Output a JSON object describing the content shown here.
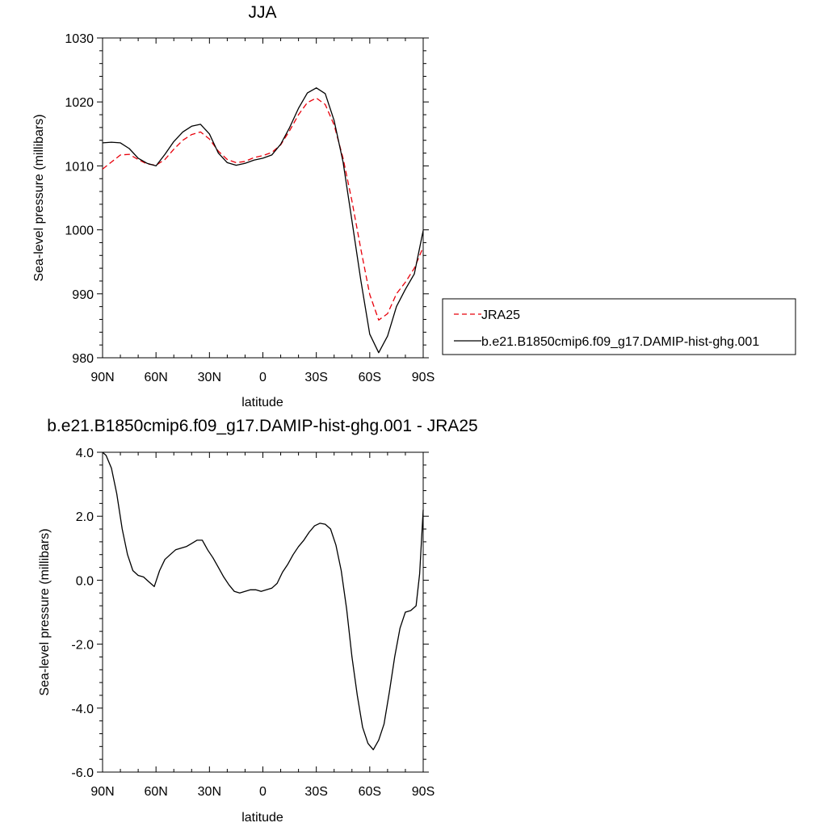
{
  "chart_data": [
    {
      "type": "line",
      "title": "JJA",
      "xlabel": "latitude",
      "ylabel": "Sea-level pressure (millibars)",
      "xlim": [
        "90N",
        "90S"
      ],
      "ylim": [
        980,
        1030
      ],
      "x_ticks": [
        "90N",
        "60N",
        "30N",
        "0",
        "30S",
        "60S",
        "90S"
      ],
      "y_ticks": [
        "980",
        "990",
        "1000",
        "1010",
        "1020",
        "1030"
      ],
      "x_values": [
        90,
        85,
        80,
        75,
        70,
        65,
        60,
        55,
        50,
        45,
        40,
        35,
        30,
        25,
        20,
        15,
        10,
        5,
        0,
        -5,
        -10,
        -15,
        -20,
        -25,
        -30,
        -35,
        -40,
        -45,
        -50,
        -55,
        -60,
        -65,
        -70,
        -75,
        -80,
        -85,
        -90
      ],
      "grid": false,
      "legend_position": "right",
      "legend": [
        "JRA25",
        "b.e21.B1850cmip6.f09_g17.DAMIP-hist-ghg.001"
      ],
      "series": [
        {
          "name": "JRA25",
          "color": "#e8000b",
          "style": "dashed",
          "values": [
            1009.5,
            1010.6,
            1011.7,
            1011.8,
            1011.0,
            1010.3,
            1010.1,
            1011.0,
            1012.6,
            1014.0,
            1014.9,
            1015.3,
            1014.2,
            1012.3,
            1011.0,
            1010.5,
            1010.7,
            1011.3,
            1011.6,
            1012.1,
            1013.3,
            1015.5,
            1018.0,
            1019.9,
            1020.6,
            1019.6,
            1016.4,
            1011.2,
            1004.5,
            997.0,
            989.9,
            985.9,
            986.9,
            990.0,
            991.8,
            994.0,
            997.3
          ]
        },
        {
          "name": "b.e21.B1850cmip6.f09_g17.DAMIP-hist-ghg.001",
          "color": "#000000",
          "style": "solid",
          "values": [
            1013.6,
            1013.7,
            1013.6,
            1012.7,
            1011.2,
            1010.4,
            1010.0,
            1011.8,
            1013.8,
            1015.3,
            1016.2,
            1016.5,
            1015.0,
            1012.0,
            1010.5,
            1010.1,
            1010.4,
            1010.9,
            1011.2,
            1011.7,
            1013.4,
            1016.0,
            1019.0,
            1021.4,
            1022.2,
            1021.3,
            1017.1,
            1010.6,
            1001.4,
            992.1,
            983.7,
            980.8,
            983.4,
            988.0,
            990.7,
            993.1,
            999.9
          ]
        }
      ]
    },
    {
      "type": "line",
      "title": "b.e21.B1850cmip6.f09_g17.DAMIP-hist-ghg.001 - JRA25",
      "xlabel": "latitude",
      "ylabel": "Sea-level pressure (millibars)",
      "xlim": [
        "90N",
        "90S"
      ],
      "ylim": [
        -6.0,
        4.0
      ],
      "x_ticks": [
        "90N",
        "60N",
        "30N",
        "0",
        "30S",
        "60S",
        "90S"
      ],
      "y_ticks": [
        "-6.0",
        "-4.0",
        "-2.0",
        "0.0",
        "2.0",
        "4.0"
      ],
      "x_values": [
        90,
        88,
        85,
        82,
        79,
        76,
        73,
        70,
        67,
        64,
        61,
        58,
        55,
        52,
        49,
        46,
        43,
        40,
        37,
        34,
        31,
        28,
        25,
        22,
        19,
        16,
        13,
        10,
        7,
        4,
        1,
        -2,
        -5,
        -8,
        -11,
        -14,
        -17,
        -20,
        -23,
        -26,
        -29,
        -32,
        -35,
        -38,
        -41,
        -44,
        -47,
        -50,
        -53,
        -56,
        -59,
        -62,
        -65,
        -68,
        -71,
        -74,
        -77,
        -80,
        -83,
        -86,
        -88,
        -90
      ],
      "grid": false,
      "series": [
        {
          "name": "b.e21.B1850cmip6.f09_g17.DAMIP-hist-ghg.001 - JRA25",
          "color": "#000000",
          "style": "solid",
          "values": [
            4.0,
            3.9,
            3.5,
            2.7,
            1.6,
            0.8,
            0.3,
            0.15,
            0.1,
            -0.05,
            -0.2,
            0.3,
            0.65,
            0.8,
            0.95,
            1.0,
            1.05,
            1.15,
            1.25,
            1.25,
            0.95,
            0.7,
            0.4,
            0.1,
            -0.15,
            -0.35,
            -0.4,
            -0.35,
            -0.3,
            -0.3,
            -0.35,
            -0.3,
            -0.25,
            -0.1,
            0.25,
            0.5,
            0.8,
            1.05,
            1.25,
            1.5,
            1.7,
            1.78,
            1.75,
            1.6,
            1.1,
            0.3,
            -0.9,
            -2.4,
            -3.6,
            -4.6,
            -5.1,
            -5.3,
            -5.0,
            -4.5,
            -3.5,
            -2.4,
            -1.5,
            -1.0,
            -0.95,
            -0.8,
            0.2,
            2.2
          ]
        }
      ]
    }
  ]
}
